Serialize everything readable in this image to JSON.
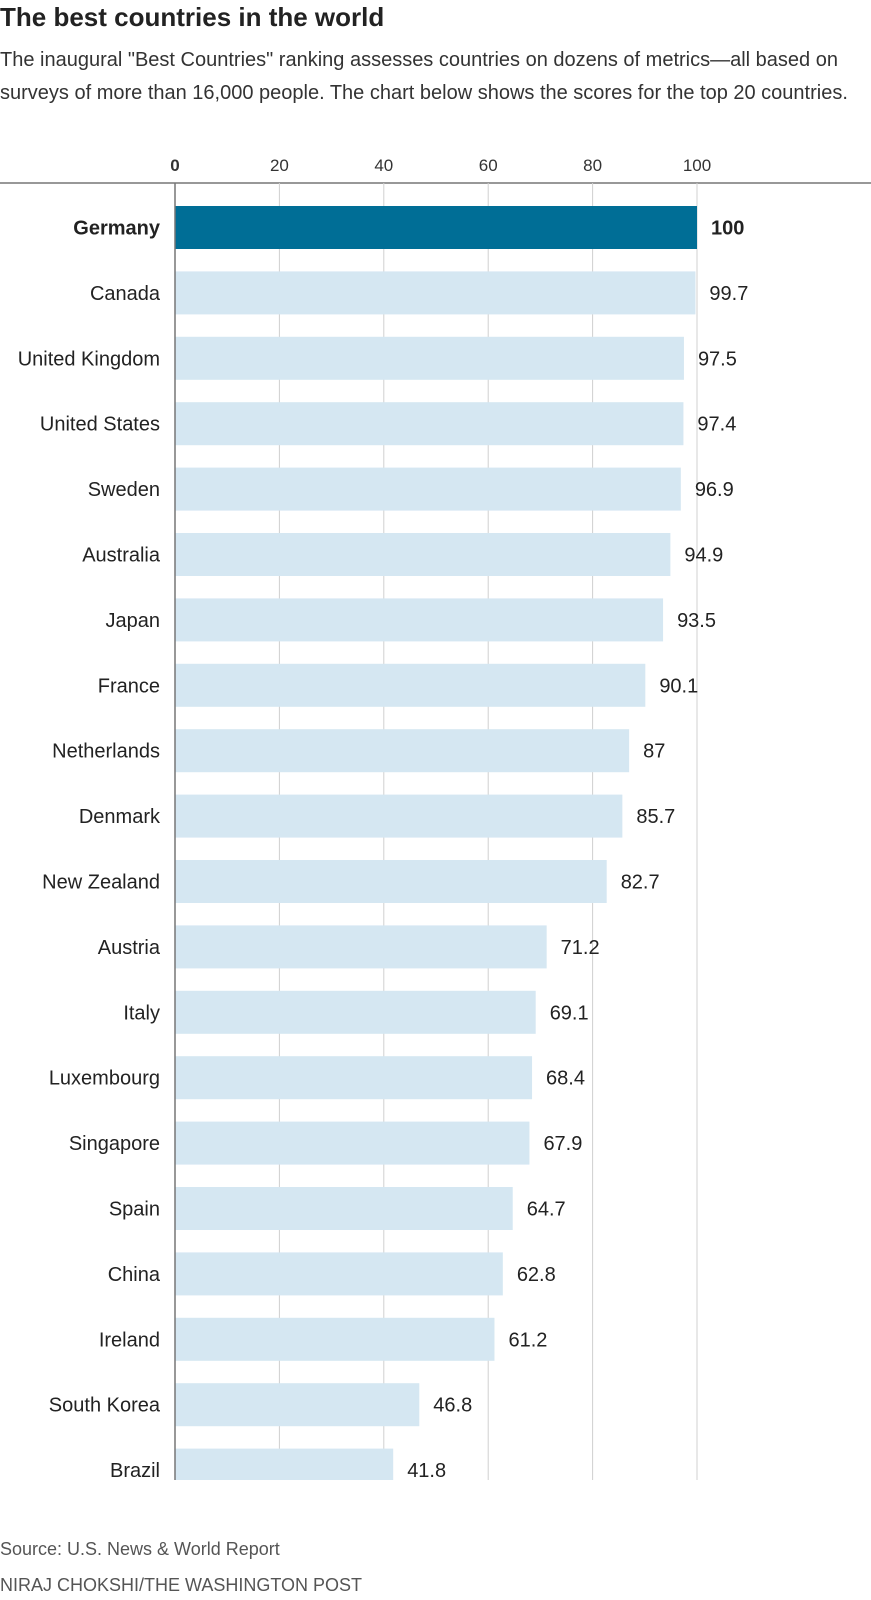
{
  "chart_data": {
    "type": "bar",
    "orientation": "horizontal",
    "title": "The best countries in the world",
    "subtitle": "The inaugural \"Best Countries\" ranking assesses countries on dozens of metrics—all based on surveys of more than 16,000 people. The chart below shows the scores for the top 20 countries.",
    "categories": [
      "Germany",
      "Canada",
      "United Kingdom",
      "United States",
      "Sweden",
      "Australia",
      "Japan",
      "France",
      "Netherlands",
      "Denmark",
      "New Zealand",
      "Austria",
      "Italy",
      "Luxembourg",
      "Singapore",
      "Spain",
      "China",
      "Ireland",
      "South Korea",
      "Brazil"
    ],
    "values": [
      100,
      99.7,
      97.5,
      97.4,
      96.9,
      94.9,
      93.5,
      90.1,
      87,
      85.7,
      82.7,
      71.2,
      69.1,
      68.4,
      67.9,
      64.7,
      62.8,
      61.2,
      46.8,
      41.8
    ],
    "value_labels": [
      "100",
      "99.7",
      "97.5",
      "97.4",
      "96.9",
      "94.9",
      "93.5",
      "90.1",
      "87",
      "85.7",
      "82.7",
      "71.2",
      "69.1",
      "68.4",
      "67.9",
      "64.7",
      "62.8",
      "61.2",
      "46.8",
      "41.8"
    ],
    "highlight": "Germany",
    "xlim": [
      0,
      100
    ],
    "xticks": [
      0,
      20,
      40,
      60,
      80,
      100
    ],
    "xtick_labels": [
      "0",
      "20",
      "40",
      "60",
      "80",
      "100"
    ],
    "xaxis_position": "top",
    "grid": true,
    "xlabel": "",
    "ylabel": "",
    "legend": "none",
    "source": "Source: U.S. News & World Report",
    "credit": "NIRAJ CHOKSHI/THE WASHINGTON POST"
  },
  "colors": {
    "highlight_bar": "#006e96",
    "bar": "#d5e7f2",
    "grid": "#d0d0d0",
    "axis": "#777777",
    "text": "#222222"
  }
}
